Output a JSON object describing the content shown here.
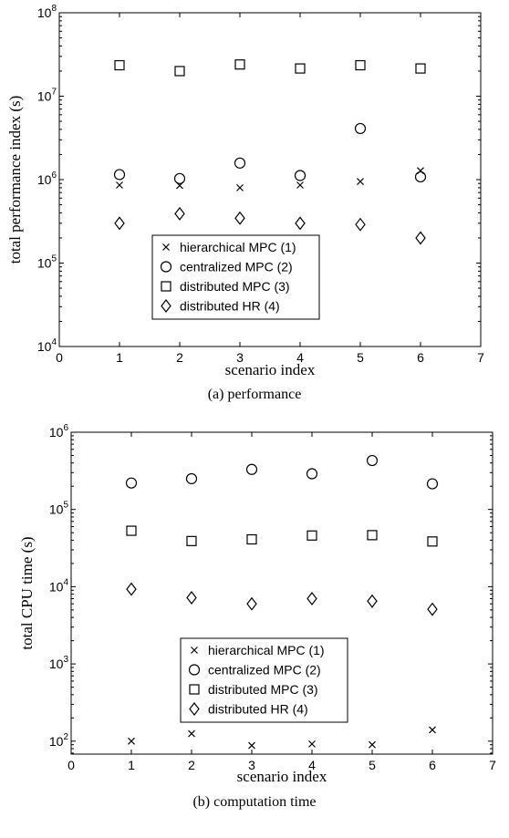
{
  "chart_data": [
    {
      "type": "scatter",
      "xlabel": "scenario index",
      "ylabel": "total performance index (s)",
      "caption": "(a)  performance",
      "xlim": [
        0,
        7
      ],
      "ylim": [
        10000,
        100000000
      ],
      "yscale": "log",
      "x_ticks": [
        "0",
        "1",
        "2",
        "3",
        "4",
        "5",
        "6",
        "7"
      ],
      "y_ticks": [
        {
          "value": 10000,
          "base": "10",
          "exp": "4"
        },
        {
          "value": 100000,
          "base": "10",
          "exp": "5"
        },
        {
          "value": 1000000,
          "base": "10",
          "exp": "6"
        },
        {
          "value": 10000000,
          "base": "10",
          "exp": "7"
        },
        {
          "value": 100000000,
          "base": "10",
          "exp": "8"
        }
      ],
      "legend_position": "lower-center",
      "x": [
        1,
        2,
        3,
        4,
        5,
        6
      ],
      "series": [
        {
          "name": "hierarchical MPC (1)",
          "marker": "x",
          "values": [
            860000,
            850000,
            800000,
            860000,
            950000,
            1280000
          ]
        },
        {
          "name": "centralized MPC (2)",
          "marker": "o",
          "values": [
            1150000,
            1030000,
            1580000,
            1120000,
            4100000,
            1080000
          ]
        },
        {
          "name": "distributed MPC (3)",
          "marker": "s",
          "values": [
            23500000,
            20000000,
            24000000,
            21500000,
            23500000,
            21500000
          ]
        },
        {
          "name": "distributed HR (4)",
          "marker": "d",
          "values": [
            300000,
            390000,
            345000,
            300000,
            290000,
            200000
          ]
        }
      ]
    },
    {
      "type": "scatter",
      "xlabel": "scenario index",
      "ylabel": "total CPU time (s)",
      "caption": "(b)  computation time",
      "xlim": [
        0,
        7
      ],
      "ylim": [
        68,
        1000000
      ],
      "yscale": "log",
      "x_ticks": [
        "0",
        "1",
        "2",
        "3",
        "4",
        "5",
        "6",
        "7"
      ],
      "y_ticks": [
        {
          "value": 100,
          "base": "10",
          "exp": "2"
        },
        {
          "value": 1000,
          "base": "10",
          "exp": "3"
        },
        {
          "value": 10000,
          "base": "10",
          "exp": "4"
        },
        {
          "value": 100000,
          "base": "10",
          "exp": "5"
        },
        {
          "value": 1000000,
          "base": "10",
          "exp": "6"
        }
      ],
      "legend_position": "lower-center",
      "x": [
        1,
        2,
        3,
        4,
        5,
        6
      ],
      "series": [
        {
          "name": "hierarchical MPC (1)",
          "marker": "x",
          "values": [
            100,
            125,
            88,
            92,
            90,
            140
          ]
        },
        {
          "name": "centralized MPC (2)",
          "marker": "o",
          "values": [
            220000,
            250000,
            330000,
            290000,
            430000,
            215000
          ]
        },
        {
          "name": "distributed MPC (3)",
          "marker": "s",
          "values": [
            53000,
            39000,
            41000,
            46000,
            46500,
            38500
          ]
        },
        {
          "name": "distributed HR (4)",
          "marker": "d",
          "values": [
            9300,
            7200,
            6000,
            7000,
            6500,
            5100
          ]
        }
      ]
    }
  ]
}
